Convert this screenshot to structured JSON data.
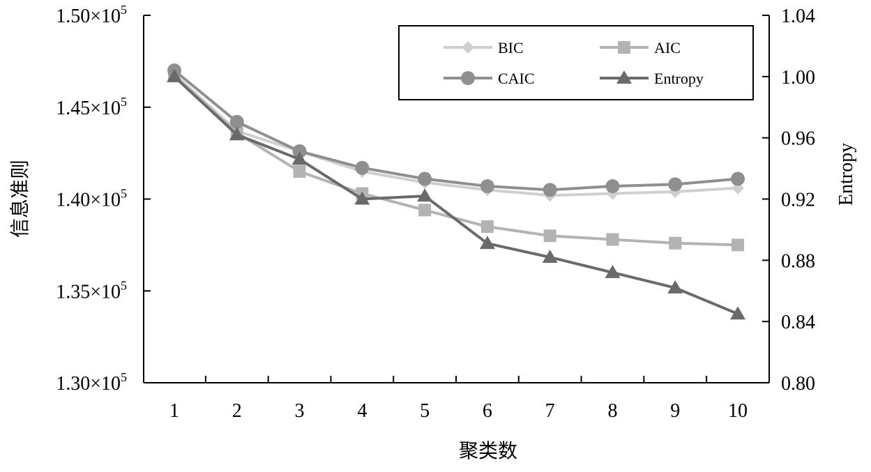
{
  "chart_data": {
    "type": "line",
    "xlabel": "聚类数",
    "ylabel_left": "信息准则",
    "ylabel_right": "Entropy",
    "x": [
      1,
      2,
      3,
      4,
      5,
      6,
      7,
      8,
      9,
      10
    ],
    "x_tick_labels": [
      "1",
      "2",
      "3",
      "4",
      "5",
      "6",
      "7",
      "8",
      "9",
      "10"
    ],
    "y_left_lim": [
      130000,
      150000
    ],
    "y_left_ticks": [
      {
        "value": 130000,
        "mantissa": "1.30",
        "times": "×10",
        "exp": "5"
      },
      {
        "value": 135000,
        "mantissa": "1.35",
        "times": "×10",
        "exp": "5"
      },
      {
        "value": 140000,
        "mantissa": "1.40",
        "times": "×10",
        "exp": "5"
      },
      {
        "value": 145000,
        "mantissa": "1.45",
        "times": "×10",
        "exp": "5"
      },
      {
        "value": 150000,
        "mantissa": "1.50",
        "times": "×10",
        "exp": "5"
      }
    ],
    "y_right_lim": [
      0.8,
      1.04
    ],
    "y_right_ticks": [
      "0.80",
      "0.84",
      "0.88",
      "0.92",
      "0.96",
      "1.00",
      "1.04"
    ],
    "grid": false,
    "legend_position": "top-right",
    "series": [
      {
        "name": "BIC",
        "axis": "left",
        "marker": "diamond",
        "color": "#cfcfcf",
        "values": [
          146800,
          143700,
          142600,
          141500,
          140900,
          140500,
          140200,
          140300,
          140400,
          140600
        ]
      },
      {
        "name": "AIC",
        "axis": "left",
        "marker": "square",
        "color": "#b3b3b3",
        "values": [
          146700,
          143600,
          141500,
          140300,
          139400,
          138500,
          138000,
          137800,
          137600,
          137500
        ]
      },
      {
        "name": "CAIC",
        "axis": "left",
        "marker": "circle",
        "color": "#8f8f8f",
        "values": [
          147000,
          144200,
          142600,
          141700,
          141100,
          140700,
          140500,
          140700,
          140800,
          141100
        ]
      },
      {
        "name": "Entropy",
        "axis": "right",
        "marker": "triangle",
        "color": "#6a6a6a",
        "values": [
          1.0,
          0.962,
          0.946,
          0.92,
          0.922,
          0.891,
          0.882,
          0.872,
          0.862,
          0.845
        ]
      }
    ]
  }
}
